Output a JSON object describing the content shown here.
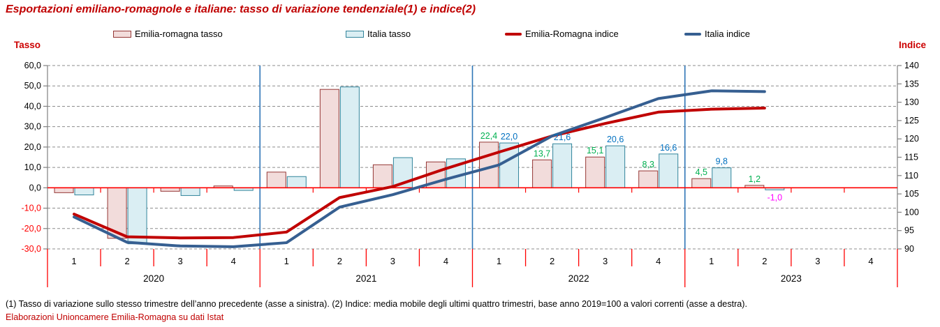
{
  "title": "Esportazioni emiliano-romagnole e italiane: tasso di variazione tendenziale(1) e indice(2)",
  "axis_titles": {
    "left": "Tasso",
    "right": "Indice"
  },
  "legend": {
    "items": [
      {
        "label": "Emilia-romagna tasso",
        "type": "box",
        "fill": "#f2dcdb",
        "stroke": "#953735"
      },
      {
        "label": "Italia tasso",
        "type": "box",
        "fill": "#daeef3",
        "stroke": "#31849b"
      },
      {
        "label": "Emilia-Romagna indice",
        "type": "line",
        "color": "#c00000"
      },
      {
        "label": "Italia indice",
        "type": "line",
        "color": "#365f91"
      }
    ]
  },
  "footnote": "(1) Tasso di variazione sullo stesso trimestre dell’anno precedente (asse a sinistra). (2) Indice: media mobile degli ultimi quattro trimestri, base anno 2019=100 a valori correnti (asse a destra).",
  "source": "Elaborazioni Unioncamere Emilia-Romagna su dati Istat",
  "colors": {
    "title_red": "#c00000",
    "zero_line_red": "#ff0000",
    "tick_red": "#ff0000",
    "negative_axis_label_red": "#ff0000",
    "gridline_gray": "#8c8c8c",
    "axis_gray": "#808080",
    "year_separator_blue": "#2e75b6",
    "er_label_green": "#00b050",
    "it_label_blue": "#0070c0",
    "negative_label_magenta": "#ff00ff"
  },
  "chart_data": {
    "type": "bar",
    "subtype": "bar+line combo, dual axis",
    "years": [
      "2020",
      "2021",
      "2022",
      "2023"
    ],
    "quarter_labels": [
      "1",
      "2",
      "3",
      "4"
    ],
    "left_axis": {
      "title": "Tasso",
      "min": -30,
      "max": 60,
      "step": 10,
      "tick_labels": [
        "60,0",
        "50,0",
        "40,0",
        "30,0",
        "20,0",
        "10,0",
        "0,0",
        "-10,0",
        "-20,0",
        "-30,0"
      ]
    },
    "right_axis": {
      "title": "Indice",
      "min": 90,
      "max": 140,
      "step": 5,
      "tick_labels": [
        "140",
        "135",
        "130",
        "125",
        "120",
        "115",
        "110",
        "105",
        "100",
        "95",
        "90"
      ]
    },
    "grid": "horizontal dashed, left-axis levels; red line at tasso 0; blue vertical separators between years",
    "negative_label_color": "#ff00ff",
    "series": [
      {
        "name": "Emilia-romagna tasso",
        "type": "bar",
        "axis": "left",
        "fill": "#f2dcdb",
        "stroke": "#953735",
        "label_color": "#00b050",
        "values": [
          -2.4,
          -24.8,
          -1.7,
          0.9,
          7.7,
          48.3,
          11.3,
          12.7,
          22.4,
          13.7,
          15.1,
          8.3,
          4.5,
          1.2,
          null,
          null
        ],
        "labels": [
          null,
          null,
          null,
          null,
          null,
          null,
          null,
          null,
          "22,4",
          "13,7",
          "15,1",
          "8,3",
          "4,5",
          "1,2",
          null,
          null
        ]
      },
      {
        "name": "Italia tasso",
        "type": "bar",
        "axis": "left",
        "fill": "#daeef3",
        "stroke": "#31849b",
        "label_color": "#0070c0",
        "values": [
          -3.5,
          -27.5,
          -3.8,
          -1.3,
          5.5,
          49.5,
          14.8,
          14.2,
          22.0,
          21.6,
          20.6,
          16.6,
          9.8,
          -1.0,
          null,
          null
        ],
        "labels": [
          null,
          null,
          null,
          null,
          null,
          null,
          null,
          null,
          "22,0",
          "21,6",
          "20,6",
          "16,6",
          "9,8",
          "-1,0",
          null,
          null
        ]
      },
      {
        "name": "Emilia-Romagna indice",
        "type": "line",
        "axis": "right",
        "color": "#c00000",
        "values": [
          99.5,
          93.3,
          93.0,
          93.1,
          94.6,
          104.0,
          107.0,
          111.9,
          116.4,
          120.8,
          124.2,
          127.3,
          128.1,
          128.4
        ]
      },
      {
        "name": "Italia indice",
        "type": "line",
        "axis": "right",
        "color": "#365f91",
        "values": [
          98.7,
          91.8,
          90.8,
          90.6,
          91.7,
          101.4,
          104.8,
          109.0,
          112.9,
          120.8,
          125.8,
          131.0,
          133.1,
          132.9
        ]
      }
    ]
  }
}
